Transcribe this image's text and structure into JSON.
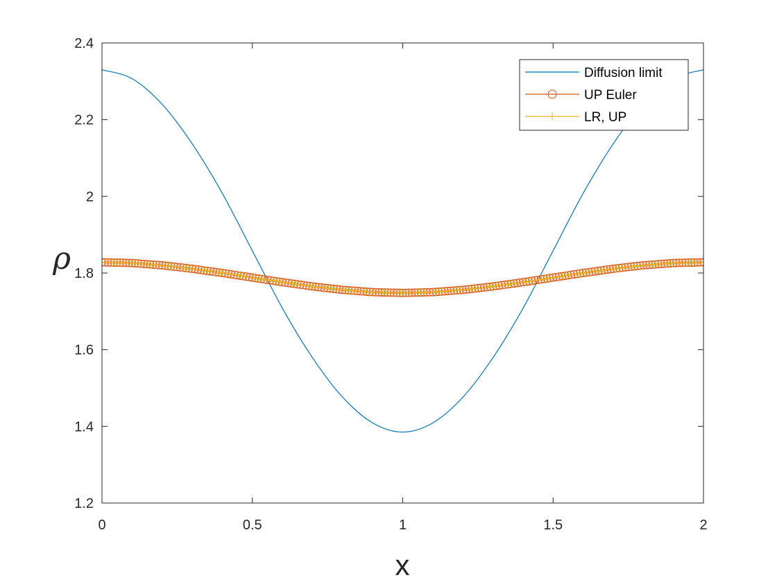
{
  "chart_data": {
    "type": "line",
    "xlabel": "x",
    "ylabel": "ρ",
    "xlim": [
      0,
      2
    ],
    "ylim": [
      1.2,
      2.4
    ],
    "xticks": [
      0,
      0.5,
      1,
      1.5,
      2
    ],
    "xtick_labels": [
      "0",
      "0.5",
      "1",
      "1.5",
      "2"
    ],
    "yticks": [
      1.2,
      1.4,
      1.6,
      1.8,
      2.0,
      2.2,
      2.4
    ],
    "ytick_labels": [
      "1.2",
      "1.4",
      "1.6",
      "1.8",
      "2",
      "2.2",
      "2.4"
    ],
    "grid": false,
    "legend_position": "top-right",
    "series": [
      {
        "name": "Diffusion limit",
        "color": "#0072BD",
        "marker": "none",
        "x": [
          0,
          0.1,
          0.2,
          0.3,
          0.4,
          0.5,
          0.6,
          0.7,
          0.8,
          0.9,
          1.0,
          1.1,
          1.2,
          1.3,
          1.4,
          1.5,
          1.6,
          1.7,
          1.8,
          1.9,
          2.0
        ],
        "values": [
          2.33,
          2.307,
          2.24,
          2.137,
          2.008,
          1.858,
          1.708,
          1.579,
          1.476,
          1.409,
          1.385,
          1.409,
          1.476,
          1.579,
          1.708,
          1.858,
          2.008,
          2.137,
          2.24,
          2.307,
          2.33
        ]
      },
      {
        "name": "UP Euler",
        "color": "#D95319",
        "marker": "circle",
        "x": [
          0,
          0.1,
          0.2,
          0.3,
          0.4,
          0.5,
          0.6,
          0.7,
          0.8,
          0.9,
          1.0,
          1.1,
          1.2,
          1.3,
          1.4,
          1.5,
          1.6,
          1.7,
          1.8,
          1.9,
          2.0
        ],
        "values": [
          1.828,
          1.826,
          1.82,
          1.811,
          1.8,
          1.788,
          1.776,
          1.765,
          1.756,
          1.75,
          1.748,
          1.75,
          1.756,
          1.765,
          1.776,
          1.788,
          1.8,
          1.811,
          1.82,
          1.826,
          1.828
        ]
      },
      {
        "name": "LR, UP",
        "color": "#EDB120",
        "marker": "plus",
        "x": [
          0,
          0.1,
          0.2,
          0.3,
          0.4,
          0.5,
          0.6,
          0.7,
          0.8,
          0.9,
          1.0,
          1.1,
          1.2,
          1.3,
          1.4,
          1.5,
          1.6,
          1.7,
          1.8,
          1.9,
          2.0
        ],
        "values": [
          1.828,
          1.826,
          1.82,
          1.811,
          1.8,
          1.788,
          1.776,
          1.765,
          1.756,
          1.75,
          1.748,
          1.75,
          1.756,
          1.765,
          1.776,
          1.788,
          1.8,
          1.811,
          1.82,
          1.826,
          1.828
        ]
      }
    ]
  }
}
